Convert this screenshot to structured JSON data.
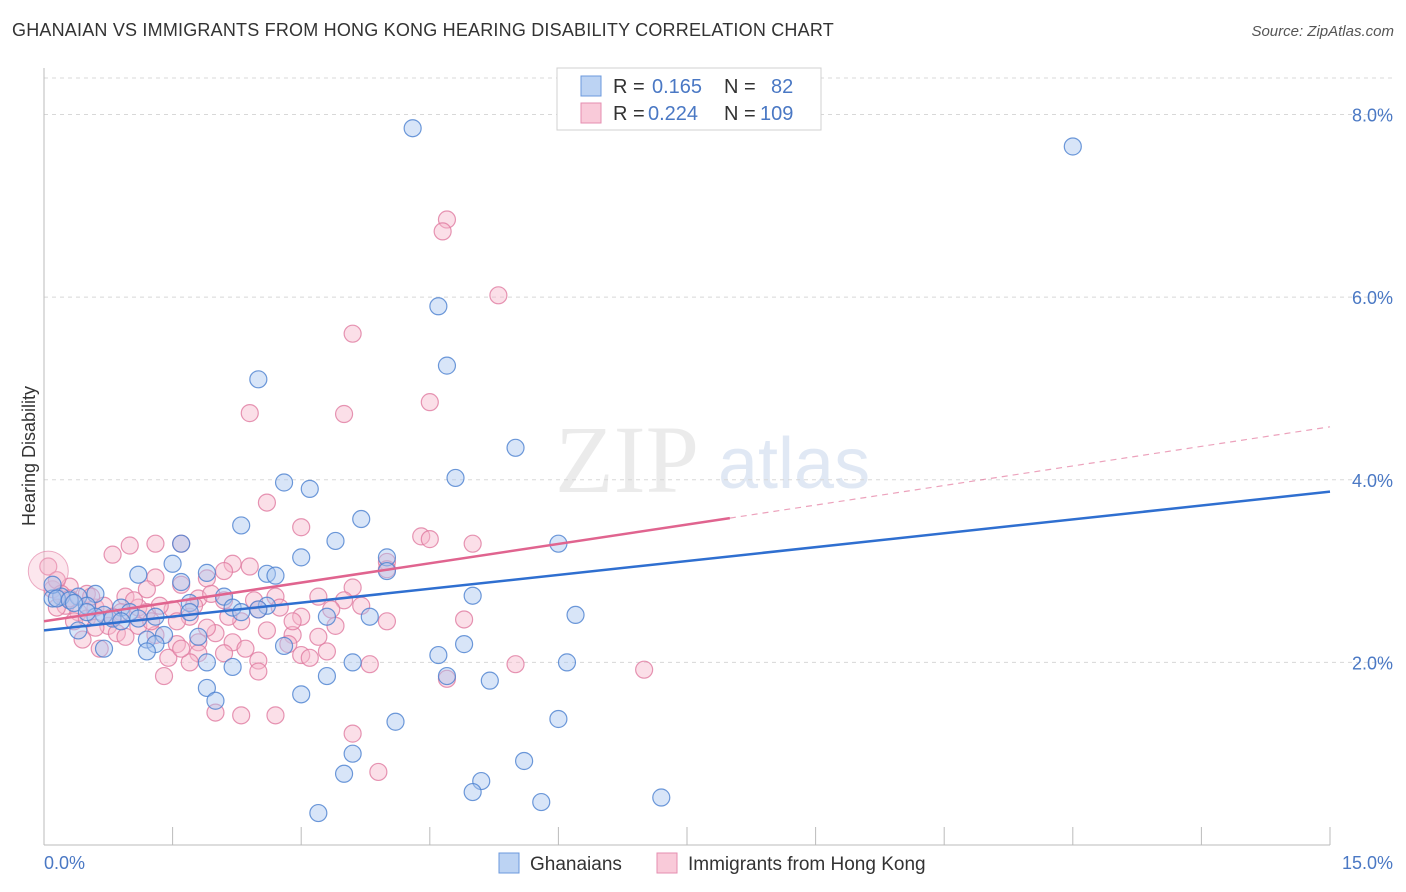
{
  "header": {
    "title": "GHANAIAN VS IMMIGRANTS FROM HONG KONG HEARING DISABILITY CORRELATION CHART",
    "source": "Source: ZipAtlas.com"
  },
  "watermark": {
    "part1": "ZIP",
    "part2": "atlas"
  },
  "legend_box": {
    "rows": [
      {
        "r_label": "R = ",
        "r_value": "0.165",
        "n_label": "N = ",
        "n_value": "82"
      },
      {
        "r_label": "R = ",
        "r_value": "0.224",
        "n_label": "N = ",
        "n_value": "109"
      }
    ]
  },
  "bottom_legend": {
    "series1": "Ghanaians",
    "series2": "Immigrants from Hong Kong"
  },
  "colors": {
    "blue_fill": "#a9c6f0",
    "blue_stroke": "#4a7fd0",
    "blue_line": "#2f6fd0",
    "pink_fill": "#f6b8cc",
    "pink_stroke": "#e07aa0",
    "pink_line": "#e0648f",
    "grid": "#d8d8d8",
    "axis_text": "#4a78c4"
  },
  "chart_data": {
    "type": "scatter",
    "title": "GHANAIAN VS IMMIGRANTS FROM HONG KONG HEARING DISABILITY CORRELATION CHART",
    "xlabel": "",
    "ylabel": "Hearing Disability",
    "xlim": [
      0,
      15
    ],
    "ylim": [
      0,
      8.4
    ],
    "x_tick_labels": [
      "0.0%",
      "15.0%"
    ],
    "y_ticks": [
      2,
      4,
      6,
      8
    ],
    "y_tick_labels": [
      "2.0%",
      "4.0%",
      "6.0%",
      "8.0%"
    ],
    "grid": true,
    "legend_placement": "bottom",
    "series": [
      {
        "name": "Ghanaians",
        "R": 0.165,
        "N": 82,
        "trend": {
          "x": [
            0,
            15
          ],
          "y": [
            2.35,
            3.87
          ],
          "dashed_from": null
        },
        "points": [
          [
            4.3,
            7.85
          ],
          [
            12.0,
            7.65
          ],
          [
            4.6,
            5.9
          ],
          [
            4.7,
            5.25
          ],
          [
            2.5,
            5.1
          ],
          [
            5.5,
            4.35
          ],
          [
            4.8,
            4.02
          ],
          [
            2.8,
            3.97
          ],
          [
            3.1,
            3.9
          ],
          [
            2.3,
            3.5
          ],
          [
            3.7,
            3.57
          ],
          [
            1.6,
            3.3
          ],
          [
            3.4,
            3.33
          ],
          [
            6.0,
            3.3
          ],
          [
            3.0,
            3.15
          ],
          [
            4.0,
            3.15
          ],
          [
            1.5,
            3.08
          ],
          [
            1.1,
            2.96
          ],
          [
            2.6,
            2.97
          ],
          [
            2.7,
            2.95
          ],
          [
            4.0,
            3.0
          ],
          [
            1.9,
            2.98
          ],
          [
            1.6,
            2.88
          ],
          [
            0.6,
            2.75
          ],
          [
            0.4,
            2.72
          ],
          [
            0.2,
            2.72
          ],
          [
            0.1,
            2.7
          ],
          [
            2.1,
            2.72
          ],
          [
            5.0,
            2.73
          ],
          [
            1.7,
            2.65
          ],
          [
            2.2,
            2.6
          ],
          [
            0.9,
            2.6
          ],
          [
            0.5,
            2.62
          ],
          [
            2.6,
            2.62
          ],
          [
            1.0,
            2.55
          ],
          [
            0.7,
            2.52
          ],
          [
            0.8,
            2.48
          ],
          [
            0.6,
            2.5
          ],
          [
            1.3,
            2.5
          ],
          [
            2.3,
            2.55
          ],
          [
            1.7,
            2.55
          ],
          [
            3.3,
            2.5
          ],
          [
            3.8,
            2.5
          ],
          [
            6.2,
            2.52
          ],
          [
            0.4,
            2.35
          ],
          [
            1.4,
            2.3
          ],
          [
            1.8,
            2.28
          ],
          [
            1.2,
            2.25
          ],
          [
            4.9,
            2.2
          ],
          [
            1.3,
            2.2
          ],
          [
            2.8,
            2.18
          ],
          [
            0.7,
            2.15
          ],
          [
            1.2,
            2.12
          ],
          [
            4.6,
            2.08
          ],
          [
            1.9,
            2.0
          ],
          [
            3.6,
            2.0
          ],
          [
            6.1,
            2.0
          ],
          [
            2.2,
            1.95
          ],
          [
            3.3,
            1.85
          ],
          [
            4.7,
            1.85
          ],
          [
            5.2,
            1.8
          ],
          [
            1.9,
            1.72
          ],
          [
            3.0,
            1.65
          ],
          [
            2.0,
            1.58
          ],
          [
            6.0,
            1.38
          ],
          [
            4.1,
            1.35
          ],
          [
            3.6,
            1.0
          ],
          [
            5.6,
            0.92
          ],
          [
            5.1,
            0.7
          ],
          [
            3.5,
            0.78
          ],
          [
            5.0,
            0.58
          ],
          [
            7.2,
            0.52
          ],
          [
            5.8,
            0.47
          ],
          [
            3.2,
            0.35
          ],
          [
            0.1,
            2.85
          ],
          [
            0.15,
            2.7
          ],
          [
            0.3,
            2.68
          ],
          [
            0.35,
            2.65
          ],
          [
            1.1,
            2.48
          ],
          [
            0.9,
            2.45
          ],
          [
            2.5,
            2.58
          ],
          [
            0.5,
            2.55
          ]
        ]
      },
      {
        "name": "Immigrants from Hong Kong",
        "R": 0.224,
        "N": 109,
        "trend": {
          "x": [
            0,
            8.0
          ],
          "y": [
            2.45,
            3.58
          ],
          "dashed_to": [
            15,
            4.58
          ]
        },
        "points": [
          [
            4.7,
            6.85
          ],
          [
            4.65,
            6.72
          ],
          [
            5.3,
            6.02
          ],
          [
            3.6,
            5.6
          ],
          [
            4.5,
            4.85
          ],
          [
            3.5,
            4.72
          ],
          [
            2.4,
            4.73
          ],
          [
            2.6,
            3.75
          ],
          [
            3.0,
            3.48
          ],
          [
            4.4,
            3.38
          ],
          [
            4.5,
            3.35
          ],
          [
            5.0,
            3.3
          ],
          [
            1.3,
            3.3
          ],
          [
            1.0,
            3.28
          ],
          [
            1.6,
            3.3
          ],
          [
            0.8,
            3.18
          ],
          [
            4.0,
            3.1
          ],
          [
            2.2,
            3.08
          ],
          [
            2.4,
            3.05
          ],
          [
            2.1,
            3.0
          ],
          [
            4.0,
            3.02
          ],
          [
            1.3,
            2.93
          ],
          [
            1.9,
            2.92
          ],
          [
            1.6,
            2.85
          ],
          [
            3.6,
            2.82
          ],
          [
            0.3,
            2.83
          ],
          [
            1.2,
            2.8
          ],
          [
            0.1,
            2.8
          ],
          [
            0.5,
            2.75
          ],
          [
            2.7,
            2.72
          ],
          [
            3.2,
            2.72
          ],
          [
            0.95,
            2.72
          ],
          [
            1.8,
            2.7
          ],
          [
            2.1,
            2.68
          ],
          [
            3.5,
            2.68
          ],
          [
            0.25,
            2.62
          ],
          [
            0.6,
            2.6
          ],
          [
            1.1,
            2.6
          ],
          [
            1.5,
            2.58
          ],
          [
            2.5,
            2.58
          ],
          [
            0.4,
            2.55
          ],
          [
            0.9,
            2.55
          ],
          [
            1.7,
            2.5
          ],
          [
            3.0,
            2.5
          ],
          [
            4.0,
            2.45
          ],
          [
            4.9,
            2.47
          ],
          [
            1.55,
            2.45
          ],
          [
            2.3,
            2.45
          ],
          [
            0.75,
            2.4
          ],
          [
            1.1,
            2.4
          ],
          [
            3.4,
            2.4
          ],
          [
            0.85,
            2.32
          ],
          [
            1.3,
            2.3
          ],
          [
            2.0,
            2.32
          ],
          [
            2.9,
            2.3
          ],
          [
            0.45,
            2.25
          ],
          [
            1.8,
            2.22
          ],
          [
            2.2,
            2.22
          ],
          [
            1.55,
            2.2
          ],
          [
            2.85,
            2.2
          ],
          [
            0.65,
            2.15
          ],
          [
            1.8,
            2.1
          ],
          [
            2.1,
            2.1
          ],
          [
            3.0,
            2.08
          ],
          [
            3.3,
            2.12
          ],
          [
            3.1,
            2.05
          ],
          [
            2.5,
            2.02
          ],
          [
            1.7,
            2.0
          ],
          [
            3.8,
            1.98
          ],
          [
            5.5,
            1.98
          ],
          [
            7.0,
            1.92
          ],
          [
            2.5,
            1.9
          ],
          [
            1.4,
            1.85
          ],
          [
            4.7,
            1.82
          ],
          [
            2.3,
            1.42
          ],
          [
            2.7,
            1.42
          ],
          [
            2.0,
            1.45
          ],
          [
            3.6,
            1.22
          ],
          [
            3.9,
            0.8
          ],
          [
            0.05,
            3.05
          ],
          [
            0.15,
            2.9
          ],
          [
            0.2,
            2.75
          ],
          [
            0.55,
            2.72
          ],
          [
            0.7,
            2.62
          ],
          [
            1.2,
            2.55
          ],
          [
            1.9,
            2.38
          ],
          [
            2.6,
            2.35
          ],
          [
            3.2,
            2.28
          ],
          [
            1.45,
            2.05
          ],
          [
            2.35,
            2.15
          ],
          [
            0.35,
            2.45
          ],
          [
            0.95,
            2.28
          ],
          [
            1.75,
            2.62
          ],
          [
            2.75,
            2.6
          ],
          [
            3.35,
            2.58
          ],
          [
            0.5,
            2.48
          ],
          [
            1.05,
            2.68
          ],
          [
            1.95,
            2.75
          ],
          [
            2.45,
            2.68
          ],
          [
            0.3,
            2.7
          ],
          [
            1.35,
            2.62
          ],
          [
            2.15,
            2.5
          ],
          [
            0.8,
            2.5
          ],
          [
            1.6,
            2.15
          ],
          [
            0.6,
            2.38
          ],
          [
            2.9,
            2.45
          ],
          [
            3.7,
            2.62
          ],
          [
            1.25,
            2.45
          ],
          [
            0.15,
            2.6
          ]
        ]
      }
    ]
  }
}
